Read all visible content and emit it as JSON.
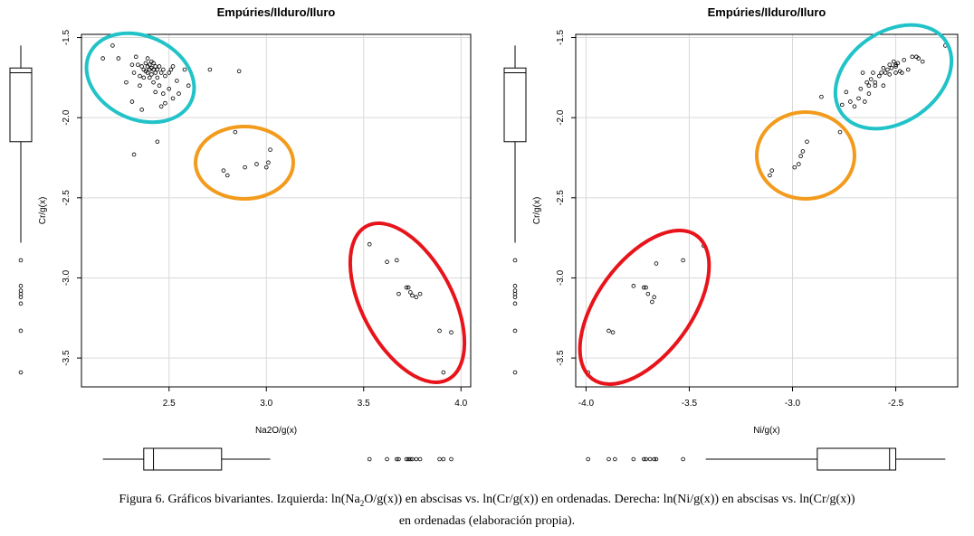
{
  "caption": {
    "line1_a": "Figura 6. Gráficos bivariantes. Izquierda: ln(Na",
    "line1_sub": "2",
    "line1_b": "O/g(x)) en abscisas vs. ln(Cr/g(x)) en ordenadas. Derecha: ln(Ni/g(x)) en abscisas vs. ln(Cr/g(x))",
    "line2": "en ordenadas (elaboración propia)."
  },
  "chart_data": [
    {
      "type": "scatter",
      "title": "Empúries/Ilduro/Iluro",
      "xlabel": "Na2O/g(x)",
      "ylabel": "Cr/g(x)",
      "xlim": [
        2.05,
        4.05
      ],
      "ylim": [
        -3.68,
        -1.48
      ],
      "xticks": [
        2.5,
        3.0,
        3.5,
        4.0
      ],
      "xtick_labels": [
        "2.5",
        "3.0",
        "3.5",
        "4.0"
      ],
      "yticks": [
        -1.5,
        -2.0,
        -2.5,
        -3.0,
        -3.5
      ],
      "ytick_labels": [
        "-1.5",
        "-2.0",
        "-2.5",
        "-3.0",
        "-3.5"
      ],
      "grid": true,
      "x": [
        2.16,
        2.21,
        2.24,
        2.28,
        2.31,
        2.32,
        2.33,
        2.34,
        2.35,
        2.35,
        2.36,
        2.37,
        2.37,
        2.38,
        2.38,
        2.39,
        2.39,
        2.39,
        2.4,
        2.4,
        2.4,
        2.41,
        2.41,
        2.41,
        2.42,
        2.42,
        2.42,
        2.43,
        2.43,
        2.43,
        2.44,
        2.44,
        2.45,
        2.45,
        2.46,
        2.46,
        2.47,
        2.47,
        2.48,
        2.48,
        2.5,
        2.5,
        2.51,
        2.52,
        2.52,
        2.54,
        2.55,
        2.58,
        2.6,
        2.71,
        2.86,
        2.31,
        2.36,
        2.44,
        2.78,
        2.8,
        2.84,
        2.89,
        2.95,
        3.0,
        3.01,
        3.02,
        3.53,
        3.62,
        3.67,
        3.68,
        3.72,
        3.73,
        3.74,
        3.75,
        3.77,
        3.79,
        3.89,
        3.91,
        3.95
      ],
      "y": [
        -1.63,
        -1.55,
        -1.63,
        -1.78,
        -1.67,
        -1.72,
        -1.62,
        -1.67,
        -1.8,
        -1.74,
        -1.68,
        -1.7,
        -1.75,
        -1.66,
        -1.71,
        -1.63,
        -1.68,
        -1.72,
        -1.67,
        -1.7,
        -1.75,
        -1.65,
        -1.69,
        -1.73,
        -1.66,
        -1.7,
        -1.78,
        -1.68,
        -1.72,
        -1.84,
        -1.7,
        -1.75,
        -1.68,
        -1.8,
        -1.72,
        -1.93,
        -1.7,
        -1.85,
        -1.74,
        -1.91,
        -1.72,
        -1.82,
        -1.7,
        -1.68,
        -1.88,
        -1.77,
        -1.85,
        -1.7,
        -1.8,
        -1.7,
        -1.71,
        -1.9,
        -1.95,
        -2.15,
        -2.33,
        -2.36,
        -2.09,
        -2.31,
        -2.29,
        -2.31,
        -2.28,
        -2.2,
        -2.79,
        -2.9,
        -2.89,
        -3.1,
        -3.06,
        -3.06,
        -3.09,
        -3.11,
        -3.12,
        -3.1,
        -3.33,
        -3.59,
        -3.34
      ],
      "extra_points": {
        "x": [
          2.32
        ],
        "y": [
          -2.23
        ]
      },
      "groups": [
        {
          "color": "#22c3c8",
          "label": ""
        },
        {
          "color": "#f29b1d",
          "label": ""
        },
        {
          "color": "#e8141b",
          "label": ""
        }
      ],
      "marginal_y_boxplot": {
        "min": -2.78,
        "q1": -2.15,
        "median": -1.72,
        "q3": -1.69,
        "max": -1.55,
        "outliers": [
          -2.89,
          -3.05,
          -3.08,
          -3.1,
          -3.12,
          -3.16,
          -3.33,
          -3.59
        ]
      },
      "marginal_x_boxplot": {
        "min": 2.16,
        "q1": 2.37,
        "median": 2.42,
        "q3": 2.77,
        "max": 3.02,
        "outliers": [
          3.53,
          3.62,
          3.67,
          3.68,
          3.72,
          3.73,
          3.74,
          3.75,
          3.77,
          3.79,
          3.89,
          3.91,
          3.95
        ]
      }
    },
    {
      "type": "scatter",
      "title": "Empúries/Ilduro/Iluro",
      "xlabel": "Ni/g(x)",
      "ylabel": "Cr/g(x)",
      "xlim": [
        -4.05,
        -2.2
      ],
      "ylim": [
        -3.68,
        -1.48
      ],
      "xticks": [
        -4.0,
        -3.5,
        -3.0,
        -2.5
      ],
      "xtick_labels": [
        "-4.0",
        "-3.5",
        "-3.0",
        "-2.5"
      ],
      "yticks": [
        -1.5,
        -2.0,
        -2.5,
        -3.0,
        -3.5
      ],
      "ytick_labels": [
        "-1.5",
        "-2.0",
        "-2.5",
        "-3.0",
        "-3.5"
      ],
      "grid": true,
      "x": [
        -2.26,
        -2.37,
        -2.39,
        -2.4,
        -2.44,
        -2.42,
        -2.46,
        -2.49,
        -2.5,
        -2.5,
        -2.51,
        -2.52,
        -2.53,
        -2.53,
        -2.54,
        -2.55,
        -2.56,
        -2.56,
        -2.57,
        -2.58,
        -2.6,
        -2.6,
        -2.61,
        -2.62,
        -2.63,
        -2.63,
        -2.64,
        -2.65,
        -2.66,
        -2.67,
        -2.68,
        -2.7,
        -2.72,
        -2.74,
        -2.76,
        -2.48,
        -2.47,
        -2.5,
        -2.86,
        -2.93,
        -2.95,
        -2.96,
        -2.97,
        -2.99,
        -3.1,
        -3.11,
        -3.43,
        -3.53,
        -3.66,
        -3.67,
        -3.68,
        -3.7,
        -3.71,
        -3.72,
        -3.77,
        -3.87,
        -3.89,
        -3.99
      ],
      "y": [
        -1.55,
        -1.65,
        -1.63,
        -1.62,
        -1.7,
        -1.62,
        -1.64,
        -1.66,
        -1.68,
        -1.72,
        -1.65,
        -1.69,
        -1.67,
        -1.73,
        -1.7,
        -1.72,
        -1.69,
        -1.8,
        -1.72,
        -1.74,
        -1.78,
        -1.8,
        -1.72,
        -1.76,
        -1.8,
        -1.85,
        -1.78,
        -1.9,
        -1.72,
        -1.82,
        -1.88,
        -1.93,
        -1.9,
        -1.84,
        -1.92,
        -1.71,
        -1.72,
        -1.67,
        -1.87,
        -2.15,
        -2.21,
        -2.24,
        -2.29,
        -2.31,
        -2.33,
        -2.36,
        -2.8,
        -2.89,
        -2.91,
        -3.12,
        -3.15,
        -3.1,
        -3.06,
        -3.06,
        -3.05,
        -3.34,
        -3.33,
        -3.59
      ],
      "extra_points": {
        "x": [
          -2.77
        ],
        "y": [
          -2.09
        ]
      },
      "groups": [
        {
          "color": "#22c3c8",
          "label": ""
        },
        {
          "color": "#f29b1d",
          "label": ""
        },
        {
          "color": "#e8141b",
          "label": ""
        }
      ],
      "marginal_y_boxplot": {
        "min": -2.78,
        "q1": -2.15,
        "median": -1.72,
        "q3": -1.69,
        "max": -1.55,
        "outliers": [
          -2.89,
          -3.05,
          -3.08,
          -3.1,
          -3.12,
          -3.16,
          -3.33,
          -3.59
        ]
      },
      "marginal_x_boxplot": {
        "min": -3.42,
        "q1": -2.88,
        "median": -2.53,
        "q3": -2.5,
        "max": -2.26,
        "outliers": [
          -3.99,
          -3.89,
          -3.86,
          -3.77,
          -3.72,
          -3.71,
          -3.69,
          -3.67,
          -3.66,
          -3.53
        ]
      }
    }
  ]
}
